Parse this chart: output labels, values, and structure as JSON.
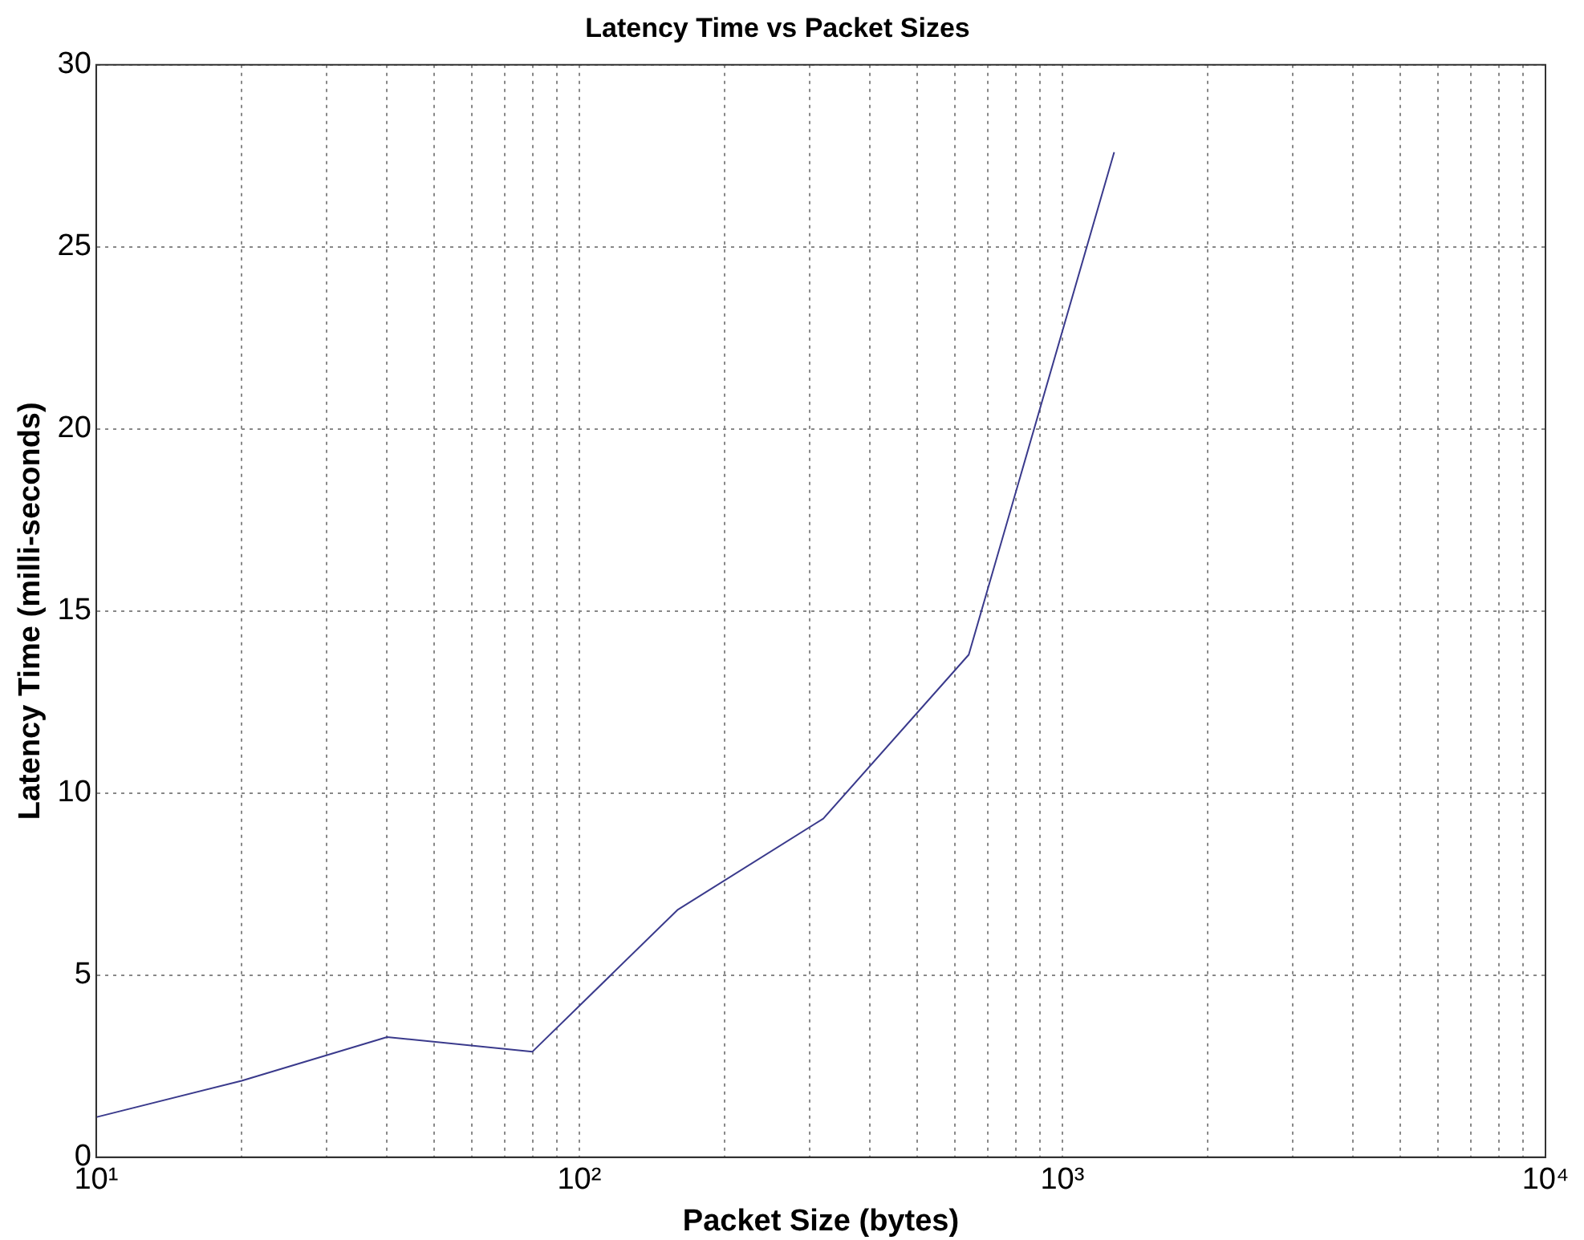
{
  "chart_data": {
    "type": "line",
    "title": "Latency Time vs Packet Sizes",
    "xlabel": "Packet Size (bytes)",
    "ylabel": "Latency Time (milli-seconds)",
    "x": [
      10,
      20,
      40,
      80,
      160,
      320,
      640,
      1280
    ],
    "series": [
      {
        "color": "#3a3a8c",
        "values": [
          1.1,
          2.1,
          3.3,
          2.9,
          6.8,
          9.3,
          13.8,
          27.6
        ]
      }
    ],
    "log": "x",
    "xlim": [
      10,
      10000
    ],
    "xticks": [
      {
        "value": 10,
        "label": "10¹"
      },
      {
        "value": 100,
        "label": "10²"
      },
      {
        "value": 1000,
        "label": "10³"
      },
      {
        "value": 10000,
        "label": "10⁴"
      }
    ],
    "ylim": [
      0,
      30
    ],
    "yticks": [
      0,
      5,
      10,
      15,
      20,
      25,
      30
    ],
    "grid": true,
    "marker": "none",
    "line_style": "solid",
    "legend": false
  }
}
